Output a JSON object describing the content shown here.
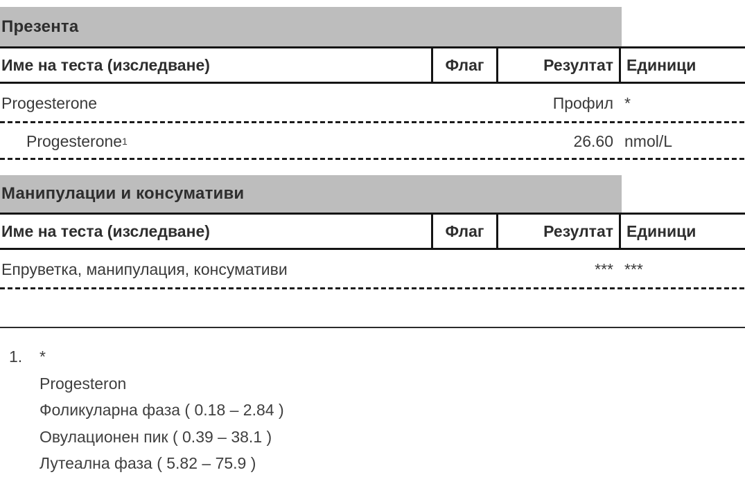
{
  "colors": {
    "section_header_bg": "#bdbdbd",
    "border": "#141414",
    "text": "#3a3a3a"
  },
  "sections": [
    {
      "title": "Презента",
      "columns": {
        "name": "Име на теста (изследване)",
        "flag": "Флаг",
        "result": "Резултат",
        "units": "Единици"
      },
      "rows": [
        {
          "name": "Progesterone",
          "flag": "",
          "result": "Профил",
          "units": "*"
        },
        {
          "name": "Progesterone",
          "name_superscript": "1",
          "flag": "",
          "result": "26.60",
          "units": "nmol/L"
        }
      ]
    },
    {
      "title": "Манипулации и консумативи",
      "columns": {
        "name": "Име на теста (изследване)",
        "flag": "Флаг",
        "result": "Резултат",
        "units": "Единици"
      },
      "rows": [
        {
          "name": "Епруветка, манипулация, консумативи",
          "flag": "",
          "result": "***",
          "units": "***"
        }
      ]
    }
  ],
  "footnotes": [
    {
      "number": "1.",
      "lines": [
        "*",
        "Progesteron",
        "Фоликуларна фаза ( 0.18 – 2.84 )",
        "Овулационен пик ( 0.39 – 38.1 )",
        "Лутеална фаза ( 5.82 – 75.9 )"
      ]
    }
  ]
}
